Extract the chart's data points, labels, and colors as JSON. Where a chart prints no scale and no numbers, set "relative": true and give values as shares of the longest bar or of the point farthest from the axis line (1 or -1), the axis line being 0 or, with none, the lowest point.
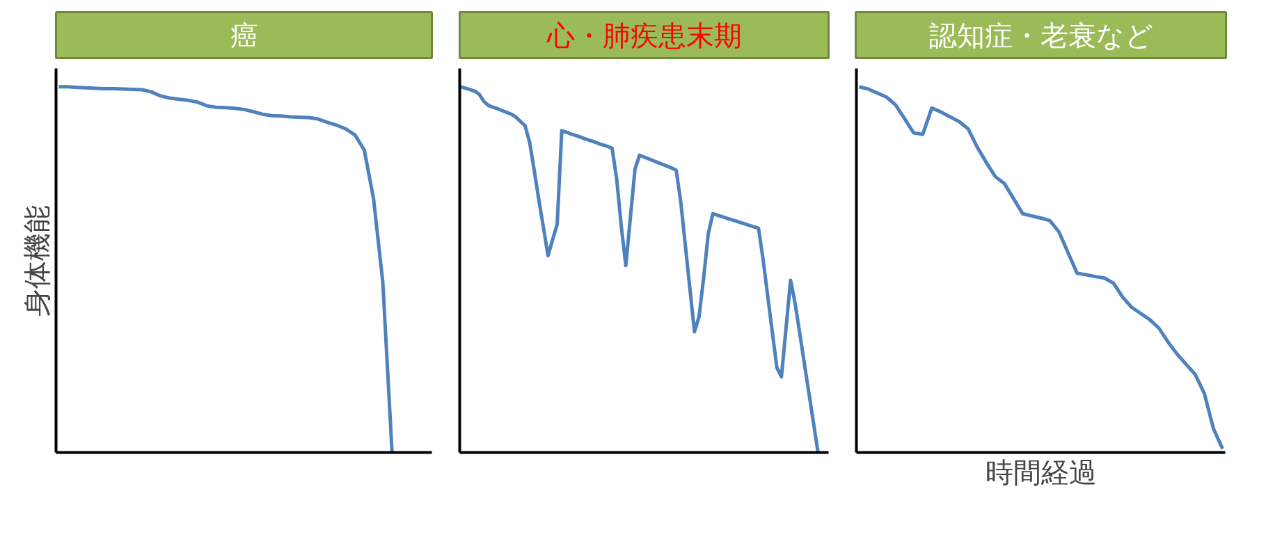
{
  "chart_data": [
    {
      "type": "line",
      "title": "癌",
      "ylabel": "身体機能",
      "relative": true,
      "marker": "none",
      "line_style": "solid",
      "categories": [
        null,
        null,
        null,
        null,
        null,
        null,
        null,
        null,
        null,
        null,
        null,
        null,
        null,
        null,
        null,
        null,
        null,
        null,
        null,
        null,
        null,
        null,
        null,
        null,
        null,
        null,
        null,
        null,
        null,
        null,
        null,
        null,
        null,
        null,
        null,
        null,
        null,
        null,
        null,
        null,
        null
      ],
      "series": [
        {
          "color": "#4f81bd",
          "values": [
            1.0,
            1.0,
            0.998,
            0.997,
            0.996,
            0.995,
            0.995,
            0.994,
            0.993,
            0.992,
            0.986,
            0.975,
            0.969,
            0.966,
            0.963,
            0.958,
            0.948,
            0.944,
            0.943,
            0.941,
            0.938,
            0.932,
            0.925,
            0.921,
            0.92,
            0.918,
            0.917,
            0.916,
            0.912,
            0.903,
            0.895,
            0.885,
            0.868,
            0.827,
            0.694,
            0.466,
            0,
            null,
            null,
            null,
            null
          ]
        }
      ]
    },
    {
      "type": "line",
      "title": "心・肺疾患末期",
      "relative": true,
      "marker": "none",
      "line_style": "solid",
      "categories": [
        null,
        null,
        null,
        null,
        null,
        null,
        null,
        null,
        null,
        null,
        null,
        null,
        null,
        null,
        null,
        null,
        null,
        null,
        null,
        null,
        null,
        null,
        null,
        null,
        null,
        null,
        null,
        null,
        null,
        null,
        null,
        null,
        null,
        null,
        null,
        null,
        null,
        null,
        null,
        null,
        null,
        null,
        null,
        null,
        null,
        null,
        null,
        null,
        null,
        null,
        null,
        null,
        null,
        null,
        null,
        null,
        null,
        null,
        null,
        null,
        null,
        null,
        null,
        null,
        null,
        null,
        null,
        null,
        null,
        null,
        null,
        null,
        null,
        null,
        null,
        null,
        null,
        null,
        null,
        null,
        null
      ],
      "series": [
        {
          "color": "#4f81bd",
          "values": [
            1.0,
            0.996,
            0.992,
            0.988,
            0.979,
            0.96,
            0.949,
            0.944,
            0.94,
            0.935,
            0.93,
            0.925,
            0.917,
            0.905,
            0.893,
            0.847,
            0.77,
            0.69,
            0.615,
            0.538,
            0.582,
            0.624,
            0.88,
            0.876,
            0.871,
            0.867,
            0.863,
            0.858,
            0.854,
            0.85,
            0.845,
            0.841,
            0.837,
            0.832,
            0.748,
            0.619,
            0.511,
            0.643,
            0.775,
            0.813,
            0.808,
            0.803,
            0.798,
            0.793,
            0.788,
            0.783,
            0.778,
            0.772,
            0.686,
            0.567,
            0.448,
            0.33,
            0.372,
            0.477,
            0.597,
            0.653,
            0.649,
            0.645,
            0.641,
            0.637,
            0.633,
            0.629,
            0.625,
            0.621,
            0.617,
            0.613,
            0.527,
            0.428,
            0.33,
            0.232,
            0.207,
            0.339,
            0.471,
            0.407,
            0.326,
            0.244,
            0.163,
            0.081,
            0,
            null,
            null
          ]
        }
      ]
    },
    {
      "type": "line",
      "title": "認知症・老衰など",
      "xlabel": "時間経過",
      "relative": true,
      "marker": "none",
      "line_style": "solid",
      "categories": [
        null,
        null,
        null,
        null,
        null,
        null,
        null,
        null,
        null,
        null,
        null,
        null,
        null,
        null,
        null,
        null,
        null,
        null,
        null,
        null,
        null,
        null,
        null,
        null,
        null,
        null,
        null,
        null,
        null,
        null,
        null,
        null,
        null,
        null,
        null,
        null,
        null,
        null,
        null,
        null,
        null
      ],
      "series": [
        {
          "color": "#4f81bd",
          "values": [
            1.0,
            0.994,
            0.983,
            0.972,
            0.951,
            0.913,
            0.874,
            0.87,
            0.942,
            0.931,
            0.918,
            0.905,
            0.885,
            0.835,
            0.793,
            0.754,
            0.735,
            0.694,
            0.653,
            0.647,
            0.641,
            0.634,
            0.603,
            0.546,
            0.49,
            0.486,
            0.481,
            0.477,
            0.463,
            0.425,
            0.397,
            0.38,
            0.363,
            0.34,
            0.302,
            0.269,
            0.241,
            0.213,
            0.161,
            0.065,
            0.01
          ]
        }
      ]
    }
  ]
}
